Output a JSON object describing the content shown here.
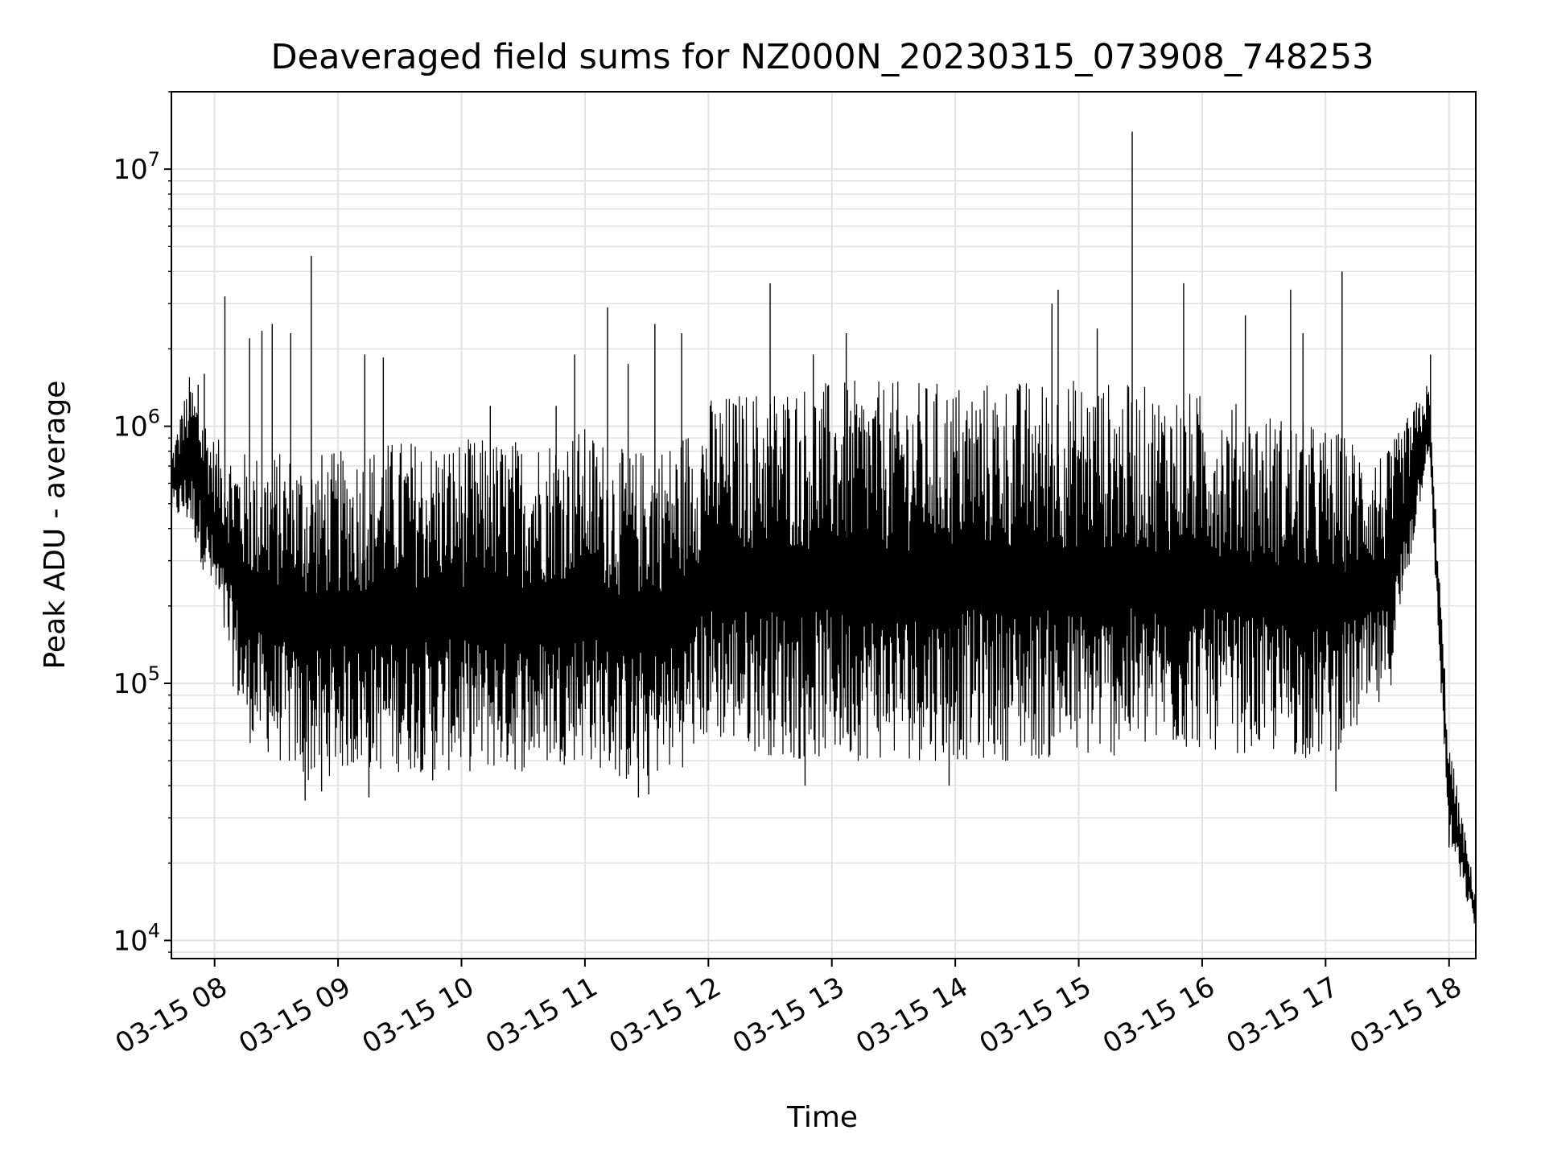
{
  "chart_data": {
    "type": "line",
    "title": "Deaveraged field sums for NZ000N_20230315_073908_748253",
    "xlabel": "Time",
    "ylabel": "Peak ADU - average",
    "yscale": "log",
    "grid": true,
    "xlim": [
      "2023-03-15 07:39",
      "2023-03-15 18:13"
    ],
    "ylim": [
      8500,
      20000000
    ],
    "x_ticks": [
      {
        "value": "2023-03-15 08:00",
        "label": "03-15 08"
      },
      {
        "value": "2023-03-15 09:00",
        "label": "03-15 09"
      },
      {
        "value": "2023-03-15 10:00",
        "label": "03-15 10"
      },
      {
        "value": "2023-03-15 11:00",
        "label": "03-15 11"
      },
      {
        "value": "2023-03-15 12:00",
        "label": "03-15 12"
      },
      {
        "value": "2023-03-15 13:00",
        "label": "03-15 13"
      },
      {
        "value": "2023-03-15 14:00",
        "label": "03-15 14"
      },
      {
        "value": "2023-03-15 15:00",
        "label": "03-15 15"
      },
      {
        "value": "2023-03-15 16:00",
        "label": "03-15 16"
      },
      {
        "value": "2023-03-15 17:00",
        "label": "03-15 17"
      },
      {
        "value": "2023-03-15 18:00",
        "label": "03-15 18"
      }
    ],
    "y_ticks": [
      {
        "value": 10000,
        "base": "10",
        "exp": "4"
      },
      {
        "value": 100000,
        "base": "10",
        "exp": "5"
      },
      {
        "value": 1000000,
        "base": "10",
        "exp": "6"
      },
      {
        "value": 10000000,
        "base": "10",
        "exp": "7"
      }
    ],
    "series": [
      {
        "color": "#000000",
        "envelope": [
          {
            "x": "2023-03-15 07:39",
            "low": 450000,
            "high": 800000
          },
          {
            "x": "2023-03-15 07:48",
            "low": 400000,
            "high": 1600000
          },
          {
            "x": "2023-03-15 08:00",
            "low": 200000,
            "high": 900000
          },
          {
            "x": "2023-03-15 08:15",
            "low": 60000,
            "high": 800000
          },
          {
            "x": "2023-03-15 08:30",
            "low": 50000,
            "high": 800000
          },
          {
            "x": "2023-03-15 08:45",
            "low": 40000,
            "high": 800000
          },
          {
            "x": "2023-03-15 09:00",
            "low": 45000,
            "high": 800000
          },
          {
            "x": "2023-03-15 09:30",
            "low": 45000,
            "high": 900000
          },
          {
            "x": "2023-03-15 10:00",
            "low": 45000,
            "high": 900000
          },
          {
            "x": "2023-03-15 10:30",
            "low": 45000,
            "high": 900000
          },
          {
            "x": "2023-03-15 11:00",
            "low": 50000,
            "high": 1000000
          },
          {
            "x": "2023-03-15 11:20",
            "low": 40000,
            "high": 800000
          },
          {
            "x": "2023-03-15 11:45",
            "low": 45000,
            "high": 900000
          },
          {
            "x": "2023-03-15 12:00",
            "low": 60000,
            "high": 1300000
          },
          {
            "x": "2023-03-15 12:40",
            "low": 50000,
            "high": 1500000
          },
          {
            "x": "2023-03-15 13:00",
            "low": 50000,
            "high": 1500000
          },
          {
            "x": "2023-03-15 14:00",
            "low": 50000,
            "high": 1500000
          },
          {
            "x": "2023-03-15 15:00",
            "low": 50000,
            "high": 1550000
          },
          {
            "x": "2023-03-15 16:00",
            "low": 55000,
            "high": 1350000
          },
          {
            "x": "2023-03-15 17:00",
            "low": 50000,
            "high": 1000000
          },
          {
            "x": "2023-03-15 17:30",
            "low": 80000,
            "high": 800000
          },
          {
            "x": "2023-03-15 17:50",
            "low": 800000,
            "high": 1500000
          },
          {
            "x": "2023-03-15 18:00",
            "low": 23000,
            "high": 60000
          },
          {
            "x": "2023-03-15 18:13",
            "low": 11000,
            "high": 15000
          }
        ],
        "spikes": [
          {
            "x": "2023-03-15 07:44",
            "y": 1100000
          },
          {
            "x": "2023-03-15 07:52",
            "y": 1450000
          },
          {
            "x": "2023-03-15 07:55",
            "y": 1600000
          },
          {
            "x": "2023-03-15 08:05",
            "y": 3200000
          },
          {
            "x": "2023-03-15 08:17",
            "y": 2200000
          },
          {
            "x": "2023-03-15 08:23",
            "y": 2350000
          },
          {
            "x": "2023-03-15 08:28",
            "y": 2500000
          },
          {
            "x": "2023-03-15 08:37",
            "y": 2300000
          },
          {
            "x": "2023-03-15 08:47",
            "y": 4600000
          },
          {
            "x": "2023-03-15 09:13",
            "y": 1900000
          },
          {
            "x": "2023-03-15 09:22",
            "y": 1850000
          },
          {
            "x": "2023-03-15 10:14",
            "y": 1200000
          },
          {
            "x": "2023-03-15 10:46",
            "y": 1200000
          },
          {
            "x": "2023-03-15 10:55",
            "y": 1900000
          },
          {
            "x": "2023-03-15 11:11",
            "y": 2900000
          },
          {
            "x": "2023-03-15 11:21",
            "y": 1750000
          },
          {
            "x": "2023-03-15 11:34",
            "y": 2500000
          },
          {
            "x": "2023-03-15 11:47",
            "y": 2300000
          },
          {
            "x": "2023-03-15 12:30",
            "y": 3600000
          },
          {
            "x": "2023-03-15 12:51",
            "y": 1900000
          },
          {
            "x": "2023-03-15 13:07",
            "y": 2300000
          },
          {
            "x": "2023-03-15 14:47",
            "y": 3000000
          },
          {
            "x": "2023-03-15 14:50",
            "y": 3400000
          },
          {
            "x": "2023-03-15 15:09",
            "y": 2400000
          },
          {
            "x": "2023-03-15 15:26",
            "y": 14000000
          },
          {
            "x": "2023-03-15 15:51",
            "y": 3600000
          },
          {
            "x": "2023-03-15 16:21",
            "y": 2700000
          },
          {
            "x": "2023-03-15 16:43",
            "y": 3400000
          },
          {
            "x": "2023-03-15 16:49",
            "y": 2300000
          },
          {
            "x": "2023-03-15 17:08",
            "y": 4000000
          },
          {
            "x": "2023-03-15 17:51",
            "y": 1900000
          }
        ],
        "dips": [
          {
            "x": "2023-03-15 08:44",
            "y": 35000
          },
          {
            "x": "2023-03-15 08:52",
            "y": 38000
          },
          {
            "x": "2023-03-15 09:15",
            "y": 36000
          },
          {
            "x": "2023-03-15 09:46",
            "y": 42000
          },
          {
            "x": "2023-03-15 11:26",
            "y": 36000
          },
          {
            "x": "2023-03-15 11:31",
            "y": 37000
          },
          {
            "x": "2023-03-15 12:47",
            "y": 40000
          },
          {
            "x": "2023-03-15 13:57",
            "y": 40000
          },
          {
            "x": "2023-03-15 17:05",
            "y": 38000
          },
          {
            "x": "2023-03-15 18:00",
            "y": 23000
          }
        ]
      }
    ]
  }
}
